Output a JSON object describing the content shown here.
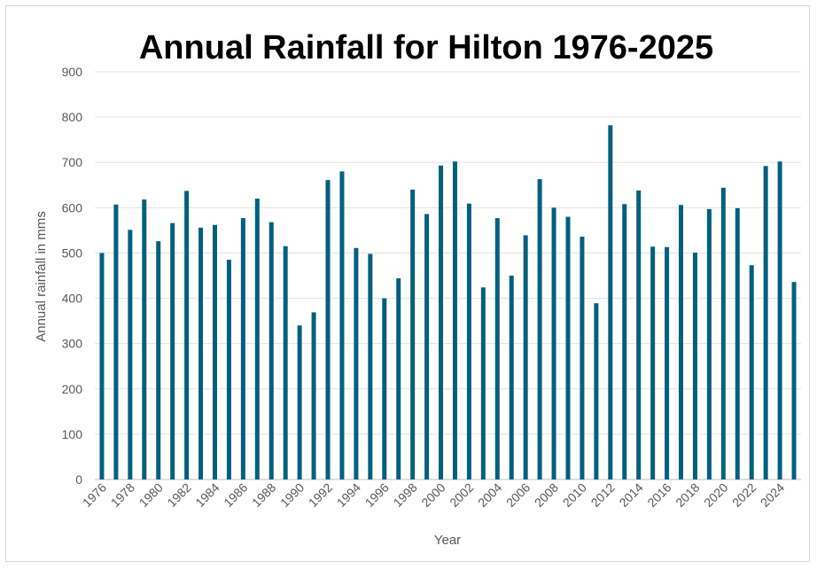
{
  "chart_data": {
    "type": "bar",
    "title": "Annual Rainfall for Hilton 1976-2025",
    "xlabel": "Year",
    "ylabel": "Annual rainfall in mms",
    "ylim": [
      0,
      900
    ],
    "yticks": [
      0,
      100,
      200,
      300,
      400,
      500,
      600,
      700,
      800,
      900
    ],
    "grid": true,
    "bar_color": "#02607F",
    "categories": [
      "1976",
      "1977",
      "1978",
      "1979",
      "1980",
      "1981",
      "1982",
      "1983",
      "1984",
      "1985",
      "1986",
      "1987",
      "1988",
      "1989",
      "1990",
      "1991",
      "1992",
      "1993",
      "1994",
      "1995",
      "1996",
      "1997",
      "1998",
      "1999",
      "2000",
      "2001",
      "2002",
      "2003",
      "2004",
      "2005",
      "2006",
      "2007",
      "2008",
      "2009",
      "2010",
      "2011",
      "2012",
      "2013",
      "2014",
      "2015",
      "2016",
      "2017",
      "2018",
      "2019",
      "2020",
      "2021",
      "2022",
      "2023",
      "2024",
      "2025"
    ],
    "x_tick_labels": [
      "1976",
      "1978",
      "1980",
      "1982",
      "1984",
      "1986",
      "1988",
      "1990",
      "1992",
      "1994",
      "1996",
      "1998",
      "2000",
      "2002",
      "2004",
      "2006",
      "2008",
      "2010",
      "2012",
      "2014",
      "2016",
      "2018",
      "2020",
      "2022",
      "2024"
    ],
    "values": [
      500,
      607,
      551,
      618,
      526,
      566,
      637,
      556,
      562,
      485,
      577,
      620,
      568,
      515,
      340,
      369,
      661,
      680,
      511,
      498,
      400,
      444,
      640,
      586,
      693,
      702,
      609,
      424,
      577,
      450,
      539,
      663,
      600,
      580,
      536,
      389,
      782,
      608,
      638,
      514,
      513,
      606,
      501,
      597,
      644,
      599,
      473,
      692,
      702,
      436
    ]
  }
}
